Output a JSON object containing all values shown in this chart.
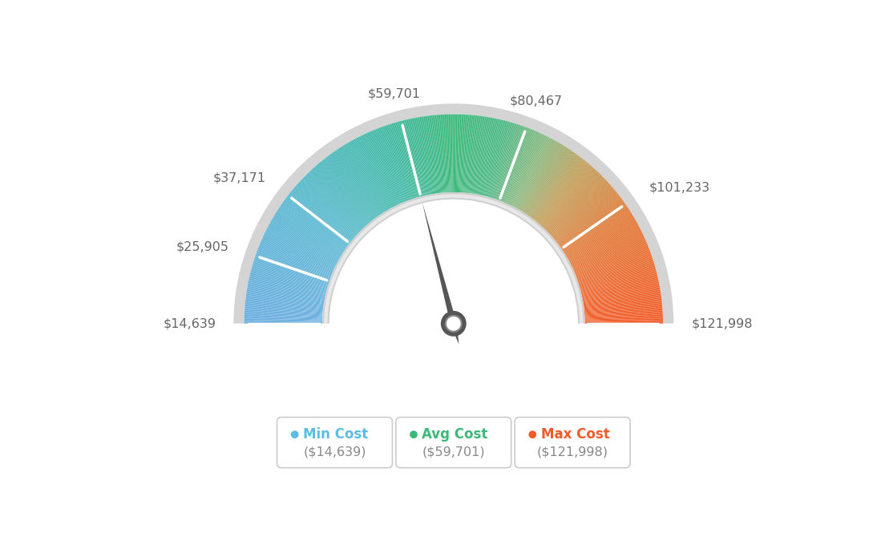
{
  "min_val": 14639,
  "max_val": 121998,
  "avg_val": 59701,
  "tick_labels": [
    "$14,639",
    "$25,905",
    "$37,171",
    "$59,701",
    "$80,467",
    "$101,233",
    "$121,998"
  ],
  "tick_values": [
    14639,
    25905,
    37171,
    59701,
    80467,
    101233,
    121998
  ],
  "legend": [
    {
      "label": "Min Cost",
      "value": "($14,639)",
      "color": "#5bbde4"
    },
    {
      "label": "Avg Cost",
      "value": "($59,701)",
      "color": "#3cb878"
    },
    {
      "label": "Max Cost",
      "value": "($121,998)",
      "color": "#f15a29"
    }
  ],
  "color_stops": [
    [
      0.0,
      [
        0.42,
        0.68,
        0.88
      ]
    ],
    [
      0.2,
      [
        0.35,
        0.72,
        0.82
      ]
    ],
    [
      0.38,
      [
        0.25,
        0.72,
        0.65
      ]
    ],
    [
      0.5,
      [
        0.24,
        0.72,
        0.48
      ]
    ],
    [
      0.58,
      [
        0.3,
        0.72,
        0.52
      ]
    ],
    [
      0.65,
      [
        0.55,
        0.72,
        0.5
      ]
    ],
    [
      0.72,
      [
        0.76,
        0.62,
        0.35
      ]
    ],
    [
      0.82,
      [
        0.88,
        0.48,
        0.22
      ]
    ],
    [
      1.0,
      [
        0.95,
        0.36,
        0.16
      ]
    ]
  ],
  "bg_color": "#ffffff",
  "text_color": "#666666",
  "gauge_outer_r": 1.18,
  "gauge_inner_r": 0.74,
  "border_outer_r": 1.24,
  "border_inner_r": 0.7,
  "needle_color": "#555555",
  "needle_ring_outer": 0.072,
  "needle_ring_inner": 0.045
}
